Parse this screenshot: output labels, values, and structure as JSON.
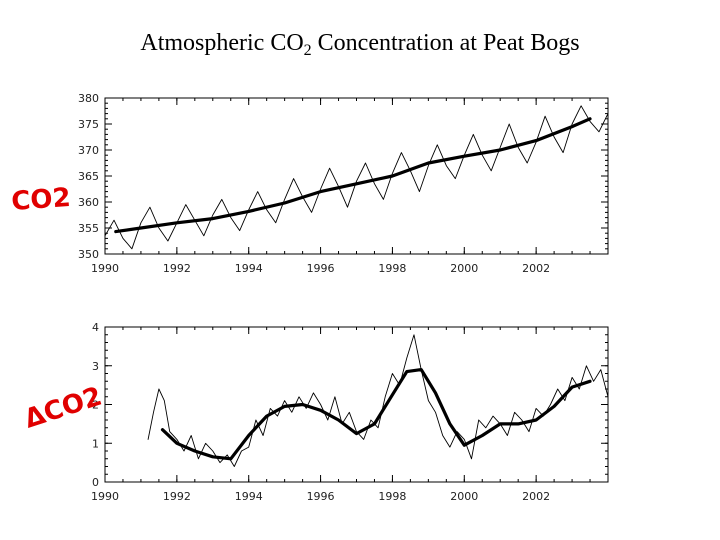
{
  "title": {
    "main": "Atmospheric CO",
    "subscript": "2",
    "rest": " Concentration at Peat Bogs"
  },
  "annotations": {
    "top": "CO2",
    "bottom": "ΔCO2",
    "color": "#e00000"
  },
  "chart_data": [
    {
      "type": "line",
      "title": "",
      "xlabel": "",
      "ylabel": "",
      "xlim": [
        1990,
        2004.0
      ],
      "ylim": [
        350,
        380
      ],
      "x_ticks": [
        "1990",
        "1992",
        "1994",
        "1996",
        "1998",
        "2000",
        "2002"
      ],
      "y_ticks": [
        "350",
        "355",
        "360",
        "365",
        "370",
        "375",
        "380"
      ],
      "series": [
        {
          "style": "thin",
          "x": [
            1990.0,
            1990.25,
            1990.5,
            1990.75,
            1991.0,
            1991.25,
            1991.5,
            1991.75,
            1992.0,
            1992.25,
            1992.5,
            1992.75,
            1993.0,
            1993.25,
            1993.5,
            1993.75,
            1994.0,
            1994.25,
            1994.5,
            1994.75,
            1995.0,
            1995.25,
            1995.5,
            1995.75,
            1996.0,
            1996.25,
            1996.5,
            1996.75,
            1997.0,
            1997.25,
            1997.5,
            1997.75,
            1998.0,
            1998.25,
            1998.5,
            1998.75,
            1999.0,
            1999.25,
            1999.5,
            1999.75,
            2000.0,
            2000.25,
            2000.5,
            2000.75,
            2001.0,
            2001.25,
            2001.5,
            2001.75,
            2002.0,
            2002.25,
            2002.5,
            2002.75,
            2003.0,
            2003.25,
            2003.5,
            2003.75,
            2004.0
          ],
          "values": [
            353.5,
            356.5,
            353.0,
            351.0,
            356.0,
            359.0,
            355.0,
            352.5,
            356.0,
            359.5,
            356.5,
            353.5,
            357.5,
            360.5,
            357.0,
            354.5,
            358.5,
            362.0,
            358.5,
            356.0,
            360.5,
            364.5,
            361.0,
            358.0,
            362.5,
            366.5,
            363.0,
            359.0,
            364.0,
            367.5,
            363.5,
            360.5,
            365.5,
            369.5,
            366.0,
            362.0,
            367.0,
            371.0,
            367.0,
            364.5,
            369.0,
            373.0,
            369.0,
            366.0,
            370.5,
            375.0,
            370.5,
            367.5,
            371.5,
            376.5,
            372.5,
            369.5,
            375.0,
            378.5,
            375.5,
            373.5,
            377.0
          ]
        },
        {
          "style": "thick",
          "x": [
            1990.3,
            1991.0,
            1992.0,
            1993.0,
            1994.0,
            1995.0,
            1996.0,
            1997.0,
            1998.0,
            1999.0,
            2000.0,
            2001.0,
            2002.0,
            2003.0,
            2003.5
          ],
          "values": [
            354.3,
            355.0,
            356.0,
            356.8,
            358.2,
            359.8,
            362.0,
            363.5,
            365.0,
            367.5,
            368.8,
            370.0,
            371.8,
            374.5,
            376.0
          ]
        }
      ]
    },
    {
      "type": "line",
      "title": "",
      "xlabel": "",
      "ylabel": "",
      "xlim": [
        1990,
        2004.0
      ],
      "ylim": [
        0,
        4
      ],
      "x_ticks": [
        "1990",
        "1992",
        "1994",
        "1996",
        "1998",
        "2000",
        "2002"
      ],
      "y_ticks": [
        "0",
        "1",
        "2",
        "3",
        "4"
      ],
      "series": [
        {
          "style": "thin",
          "x": [
            1991.2,
            1991.35,
            1991.5,
            1991.65,
            1991.8,
            1992.0,
            1992.2,
            1992.4,
            1992.6,
            1992.8,
            1993.0,
            1993.2,
            1993.4,
            1993.6,
            1993.8,
            1994.0,
            1994.2,
            1994.4,
            1994.6,
            1994.8,
            1995.0,
            1995.2,
            1995.4,
            1995.6,
            1995.8,
            1996.0,
            1996.2,
            1996.4,
            1996.6,
            1996.8,
            1997.0,
            1997.2,
            1997.4,
            1997.6,
            1997.8,
            1998.0,
            1998.2,
            1998.4,
            1998.6,
            1998.8,
            1999.0,
            1999.2,
            1999.4,
            1999.6,
            1999.8,
            2000.0,
            2000.2,
            2000.4,
            2000.6,
            2000.8,
            2001.0,
            2001.2,
            2001.4,
            2001.6,
            2001.8,
            2002.0,
            2002.2,
            2002.4,
            2002.6,
            2002.8,
            2003.0,
            2003.2,
            2003.4,
            2003.6,
            2003.8,
            2004.0
          ],
          "values": [
            1.1,
            1.8,
            2.4,
            2.1,
            1.3,
            1.1,
            0.8,
            1.2,
            0.6,
            1.0,
            0.8,
            0.5,
            0.7,
            0.4,
            0.8,
            0.9,
            1.6,
            1.2,
            1.9,
            1.7,
            2.1,
            1.8,
            2.2,
            1.9,
            2.3,
            2.0,
            1.6,
            2.2,
            1.5,
            1.8,
            1.3,
            1.1,
            1.6,
            1.4,
            2.2,
            2.8,
            2.5,
            3.2,
            3.8,
            2.9,
            2.1,
            1.8,
            1.2,
            0.9,
            1.3,
            1.1,
            0.6,
            1.6,
            1.4,
            1.7,
            1.5,
            1.2,
            1.8,
            1.6,
            1.3,
            1.9,
            1.7,
            2.0,
            2.4,
            2.1,
            2.7,
            2.4,
            3.0,
            2.6,
            2.9,
            2.2
          ]
        },
        {
          "style": "thick",
          "x": [
            1991.6,
            1992.0,
            1992.5,
            1993.0,
            1993.5,
            1994.0,
            1994.5,
            1995.0,
            1995.5,
            1996.0,
            1996.5,
            1997.0,
            1997.5,
            1998.0,
            1998.4,
            1998.8,
            1999.2,
            1999.6,
            2000.0,
            2000.5,
            2001.0,
            2001.5,
            2002.0,
            2002.5,
            2003.0,
            2003.5
          ],
          "values": [
            1.35,
            1.0,
            0.8,
            0.65,
            0.6,
            1.2,
            1.7,
            1.95,
            2.0,
            1.85,
            1.6,
            1.25,
            1.5,
            2.25,
            2.85,
            2.9,
            2.3,
            1.5,
            0.95,
            1.2,
            1.5,
            1.5,
            1.6,
            1.95,
            2.45,
            2.6
          ]
        }
      ]
    }
  ]
}
